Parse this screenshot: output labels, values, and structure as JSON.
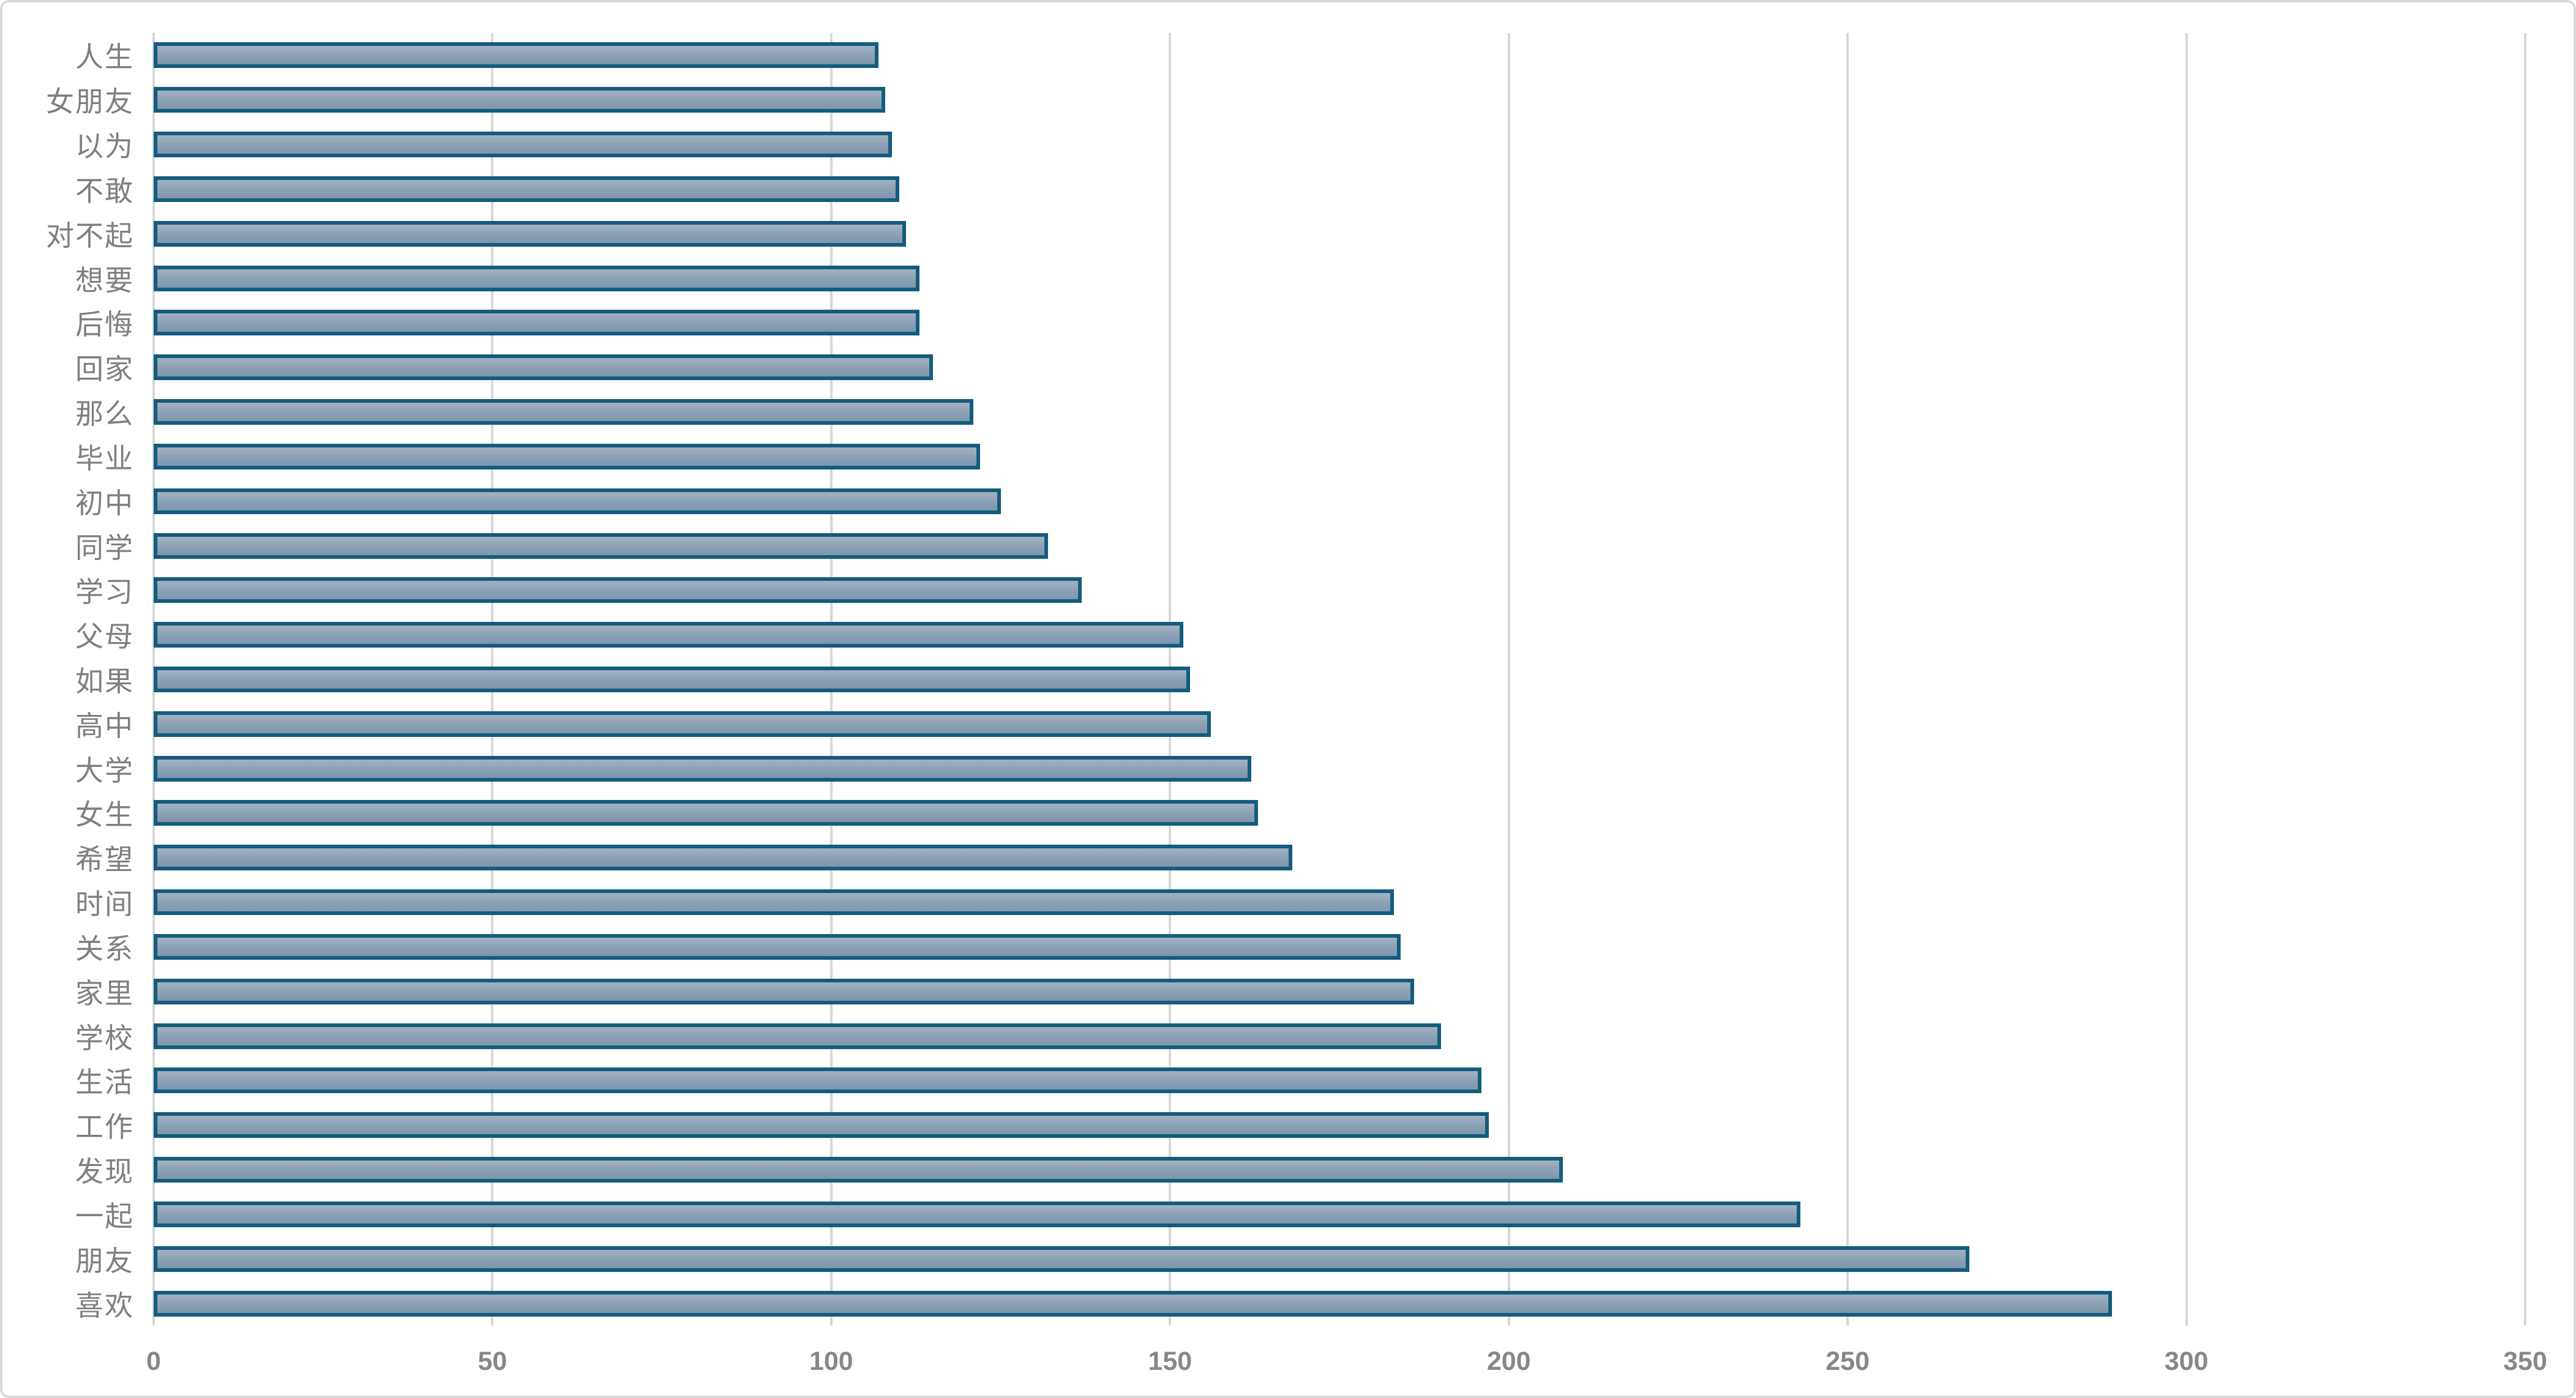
{
  "chart_data": {
    "type": "bar",
    "orientation": "horizontal",
    "title": "",
    "xlabel": "",
    "ylabel": "",
    "categories": [
      "人生",
      "女朋友",
      "以为",
      "不敢",
      "对不起",
      "想要",
      "后悔",
      "回家",
      "那么",
      "毕业",
      "初中",
      "同学",
      "学习",
      "父母",
      "如果",
      "高中",
      "大学",
      "女生",
      "希望",
      "时间",
      "关系",
      "家里",
      "学校",
      "生活",
      "工作",
      "发现",
      "一起",
      "朋友",
      "喜欢"
    ],
    "values": [
      107,
      108,
      109,
      110,
      111,
      113,
      113,
      115,
      121,
      122,
      125,
      132,
      137,
      152,
      153,
      156,
      162,
      163,
      168,
      183,
      184,
      186,
      190,
      196,
      197,
      208,
      243,
      268,
      289
    ],
    "xlim": [
      0,
      350
    ],
    "xticks": [
      0,
      50,
      100,
      150,
      200,
      250,
      300,
      350
    ],
    "grid": "vertical-gridlines-on",
    "legend": "none",
    "colors": {
      "bar_fill_top": "#a3b2c1",
      "bar_fill_mid": "#8ba0b4",
      "bar_fill_bottom": "#7e96ac",
      "bar_border": "#145c7d",
      "gridline": "#d7d7d7",
      "category_label": "#7f7f7f",
      "tick_label": "#878787",
      "frame_border": "#d9d9d9",
      "background": "#ffffff"
    }
  }
}
